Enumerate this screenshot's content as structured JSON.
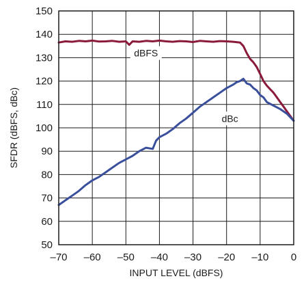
{
  "chart_data": {
    "type": "line",
    "xlabel": "INPUT LEVEL (dBFS)",
    "ylabel": "SFDR (dBFS, dBc)",
    "xlim": [
      -70,
      0
    ],
    "ylim": [
      50,
      150
    ],
    "x_ticks": [
      -70,
      -60,
      -50,
      -40,
      -30,
      -20,
      -10,
      0
    ],
    "x_tick_labels": [
      "–70",
      "–60",
      "–50",
      "–40",
      "–30",
      "–20",
      "–10",
      "0"
    ],
    "y_ticks": [
      50,
      60,
      70,
      80,
      90,
      100,
      110,
      120,
      130,
      140,
      150
    ],
    "grid": true,
    "series": [
      {
        "name": "dBFS",
        "color": "#8b1a3a",
        "x": [
          -70,
          -68,
          -66,
          -64,
          -62,
          -60,
          -58,
          -56,
          -54,
          -52,
          -50,
          -49,
          -48,
          -46,
          -44,
          -42,
          -40,
          -38,
          -36,
          -34,
          -32,
          -30,
          -28,
          -26,
          -24,
          -22,
          -20,
          -18,
          -16,
          -15,
          -14,
          -13,
          -12,
          -11,
          -10,
          -9,
          -8,
          -7,
          -6,
          -5,
          -4,
          -3,
          -2,
          -1,
          0
        ],
        "y": [
          136.5,
          137,
          136.8,
          137.2,
          137,
          137.3,
          136.9,
          137,
          137.2,
          136.8,
          137,
          135.5,
          137,
          136.8,
          137.2,
          137,
          137.3,
          137,
          136.8,
          137.1,
          137,
          136.7,
          137.2,
          137,
          136.8,
          137.1,
          137,
          136.8,
          136.5,
          135,
          132,
          129.5,
          128,
          126,
          123,
          120,
          118,
          116.5,
          115,
          113,
          111,
          109,
          107,
          105,
          103
        ]
      },
      {
        "name": "dBc",
        "color": "#3a4f9c",
        "x": [
          -70,
          -68,
          -66,
          -64,
          -62,
          -60,
          -58,
          -56,
          -54,
          -52,
          -50,
          -48,
          -46,
          -44,
          -42,
          -41,
          -40,
          -38,
          -36,
          -34,
          -32,
          -30,
          -28,
          -26,
          -24,
          -22,
          -20,
          -18,
          -17,
          -16,
          -15,
          -14,
          -13,
          -12,
          -11,
          -10,
          -9,
          -8,
          -6,
          -4,
          -2,
          0
        ],
        "y": [
          67,
          69,
          71,
          73,
          75.5,
          77.5,
          79,
          81,
          83,
          85,
          86.5,
          88,
          90,
          91.5,
          91,
          94.5,
          96,
          97.5,
          99.5,
          102,
          104,
          106.5,
          109,
          111,
          113,
          115,
          117,
          118.5,
          119.5,
          120,
          121,
          119,
          118.5,
          117,
          116,
          114,
          113,
          111,
          109.5,
          108,
          106,
          103
        ]
      }
    ],
    "annotations": [
      {
        "text": "dBFS",
        "x": -44,
        "y": 132
      },
      {
        "text": "dBc",
        "x": -19,
        "y": 104
      }
    ]
  }
}
